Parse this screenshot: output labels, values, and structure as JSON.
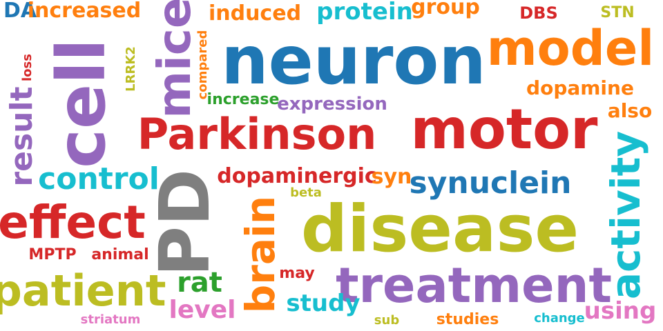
{
  "words": {
    "DA": "DA",
    "increased": "increased",
    "mice": "mice",
    "induced": "induced",
    "protein": "protein",
    "group": "group",
    "DBS": "DBS",
    "STN": "STN",
    "model": "model",
    "neuron": "neuron",
    "cell": "cell",
    "loss": "loss",
    "LRRK2": "LRRK2",
    "compared": "compared",
    "dopamine": "dopamine",
    "result": "result",
    "increase": "increase",
    "expression": "expression",
    "also": "also",
    "Parkinson": "Parkinson",
    "motor": "motor",
    "activity": "activity",
    "control": "control",
    "dopaminergic": "dopaminergic",
    "syn": "syn",
    "synuclein": "synuclein",
    "PD": "PD",
    "beta": "beta",
    "effect": "effect",
    "disease": "disease",
    "brain": "brain",
    "MPTP": "MPTP",
    "animal": "animal",
    "may": "may",
    "patient": "patient",
    "rat": "rat",
    "treatment": "treatment",
    "level": "level",
    "study": "study",
    "using": "using",
    "striatum": "striatum",
    "sub": "sub",
    "studies": "studies",
    "change": "change"
  }
}
